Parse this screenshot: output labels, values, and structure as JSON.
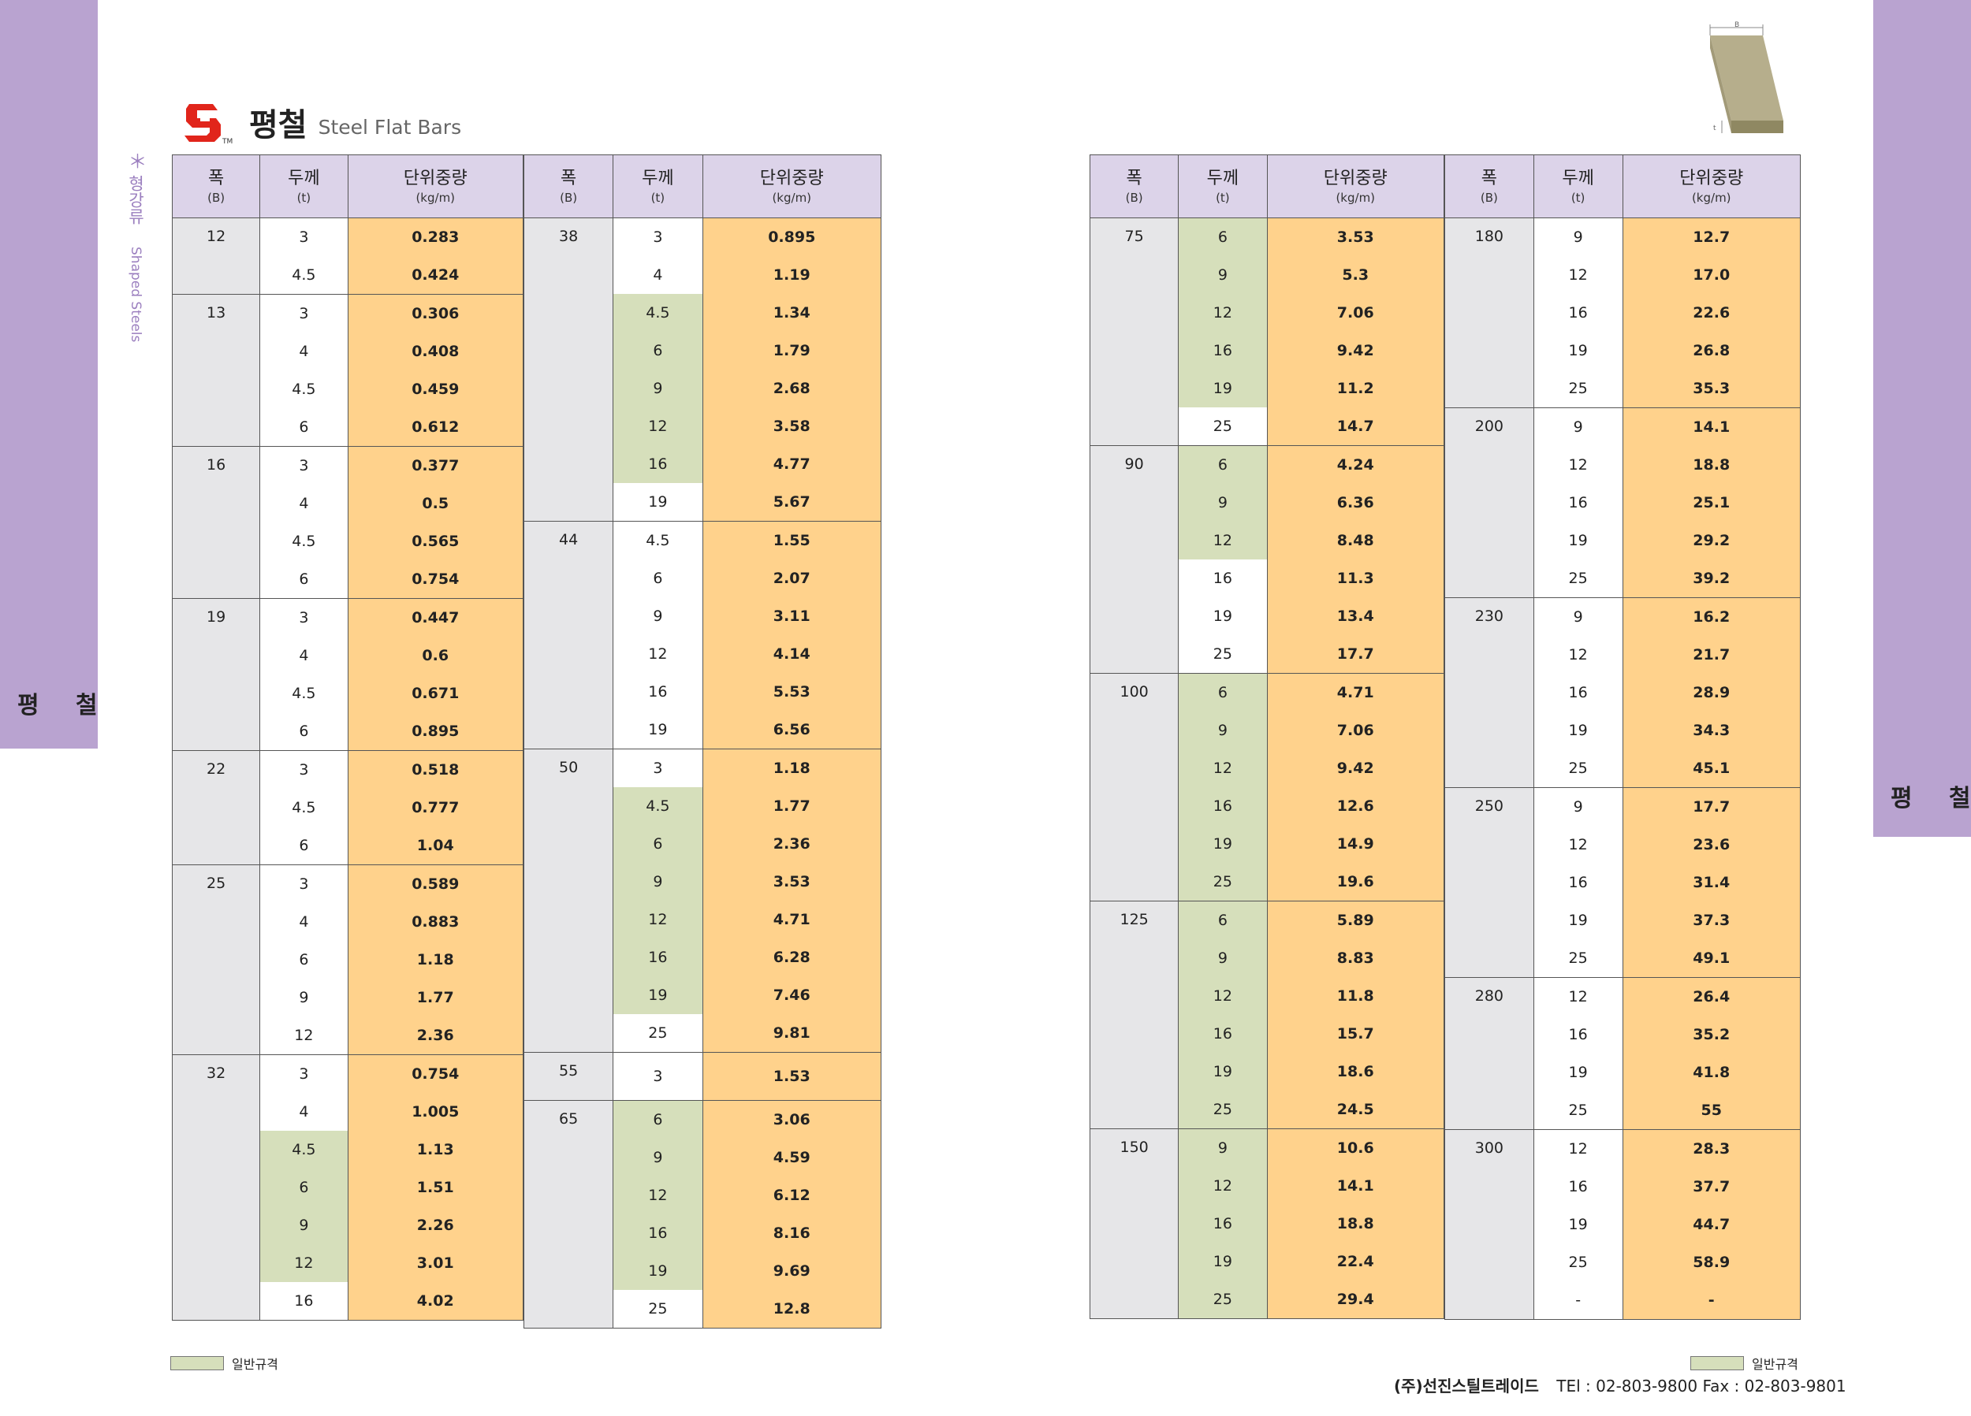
{
  "side_tab": {
    "label": "평 철"
  },
  "category": {
    "star": "＊",
    "korean": "형강류",
    "english": "Shaped Steels"
  },
  "title": {
    "korean": "평철",
    "english": "Steel Flat Bars",
    "logo_tm": "TM"
  },
  "diagram": {
    "label_b": "B",
    "label_t": "t"
  },
  "headers": {
    "width": {
      "label": "폭",
      "sub": "(B)"
    },
    "thickness": {
      "label": "두께",
      "sub": "(t)"
    },
    "weight": {
      "label": "단위중량",
      "sub": "(kg/m)"
    }
  },
  "legend": {
    "label": "일반규격"
  },
  "footer": {
    "company": "(주)선진스틸트레이드",
    "tel": "TEl : 02-803-9800",
    "fax": "Fax : 02-803-9801"
  },
  "tables": {
    "left_a": [
      {
        "b": "12",
        "rows": [
          [
            "3",
            "0.283",
            false
          ],
          [
            "4.5",
            "0.424",
            false
          ]
        ]
      },
      {
        "b": "13",
        "rows": [
          [
            "3",
            "0.306",
            false
          ],
          [
            "4",
            "0.408",
            false
          ],
          [
            "4.5",
            "0.459",
            false
          ],
          [
            "6",
            "0.612",
            false
          ]
        ]
      },
      {
        "b": "16",
        "rows": [
          [
            "3",
            "0.377",
            false
          ],
          [
            "4",
            "0.5",
            false
          ],
          [
            "4.5",
            "0.565",
            false
          ],
          [
            "6",
            "0.754",
            false
          ]
        ]
      },
      {
        "b": "19",
        "rows": [
          [
            "3",
            "0.447",
            false
          ],
          [
            "4",
            "0.6",
            false
          ],
          [
            "4.5",
            "0.671",
            false
          ],
          [
            "6",
            "0.895",
            false
          ]
        ]
      },
      {
        "b": "22",
        "rows": [
          [
            "3",
            "0.518",
            false
          ],
          [
            "4.5",
            "0.777",
            false
          ],
          [
            "6",
            "1.04",
            false
          ]
        ]
      },
      {
        "b": "25",
        "rows": [
          [
            "3",
            "0.589",
            false
          ],
          [
            "4",
            "0.883",
            false
          ],
          [
            "6",
            "1.18",
            false
          ],
          [
            "9",
            "1.77",
            false
          ],
          [
            "12",
            "2.36",
            false
          ]
        ]
      },
      {
        "b": "32",
        "rows": [
          [
            "3",
            "0.754",
            false
          ],
          [
            "4",
            "1.005",
            false
          ],
          [
            "4.5",
            "1.13",
            true
          ],
          [
            "6",
            "1.51",
            true
          ],
          [
            "9",
            "2.26",
            true
          ],
          [
            "12",
            "3.01",
            true
          ],
          [
            "16",
            "4.02",
            false
          ]
        ]
      }
    ],
    "left_b": [
      {
        "b": "38",
        "rows": [
          [
            "3",
            "0.895",
            false
          ],
          [
            "4",
            "1.19",
            false
          ],
          [
            "4.5",
            "1.34",
            true
          ],
          [
            "6",
            "1.79",
            true
          ],
          [
            "9",
            "2.68",
            true
          ],
          [
            "12",
            "3.58",
            true
          ],
          [
            "16",
            "4.77",
            true
          ],
          [
            "19",
            "5.67",
            false
          ]
        ]
      },
      {
        "b": "44",
        "rows": [
          [
            "4.5",
            "1.55",
            false
          ],
          [
            "6",
            "2.07",
            false
          ],
          [
            "9",
            "3.11",
            false
          ],
          [
            "12",
            "4.14",
            false
          ],
          [
            "16",
            "5.53",
            false
          ],
          [
            "19",
            "6.56",
            false
          ]
        ]
      },
      {
        "b": "50",
        "rows": [
          [
            "3",
            "1.18",
            false
          ],
          [
            "4.5",
            "1.77",
            true
          ],
          [
            "6",
            "2.36",
            true
          ],
          [
            "9",
            "3.53",
            true
          ],
          [
            "12",
            "4.71",
            true
          ],
          [
            "16",
            "6.28",
            true
          ],
          [
            "19",
            "7.46",
            true
          ],
          [
            "25",
            "9.81",
            false
          ]
        ]
      },
      {
        "b": "55",
        "rows": [
          [
            "3",
            "1.53",
            false
          ]
        ]
      },
      {
        "b": "65",
        "rows": [
          [
            "6",
            "3.06",
            true
          ],
          [
            "9",
            "4.59",
            true
          ],
          [
            "12",
            "6.12",
            true
          ],
          [
            "16",
            "8.16",
            true
          ],
          [
            "19",
            "9.69",
            true
          ],
          [
            "25",
            "12.8",
            false
          ]
        ]
      }
    ],
    "right_a": [
      {
        "b": "75",
        "rows": [
          [
            "6",
            "3.53",
            true
          ],
          [
            "9",
            "5.3",
            true
          ],
          [
            "12",
            "7.06",
            true
          ],
          [
            "16",
            "9.42",
            true
          ],
          [
            "19",
            "11.2",
            true
          ],
          [
            "25",
            "14.7",
            false
          ]
        ]
      },
      {
        "b": "90",
        "rows": [
          [
            "6",
            "4.24",
            true
          ],
          [
            "9",
            "6.36",
            true
          ],
          [
            "12",
            "8.48",
            true
          ],
          [
            "16",
            "11.3",
            false
          ],
          [
            "19",
            "13.4",
            false
          ],
          [
            "25",
            "17.7",
            false
          ]
        ]
      },
      {
        "b": "100",
        "rows": [
          [
            "6",
            "4.71",
            true
          ],
          [
            "9",
            "7.06",
            true
          ],
          [
            "12",
            "9.42",
            true
          ],
          [
            "16",
            "12.6",
            true
          ],
          [
            "19",
            "14.9",
            true
          ],
          [
            "25",
            "19.6",
            true
          ]
        ]
      },
      {
        "b": "125",
        "rows": [
          [
            "6",
            "5.89",
            true
          ],
          [
            "9",
            "8.83",
            true
          ],
          [
            "12",
            "11.8",
            true
          ],
          [
            "16",
            "15.7",
            true
          ],
          [
            "19",
            "18.6",
            true
          ],
          [
            "25",
            "24.5",
            true
          ]
        ]
      },
      {
        "b": "150",
        "rows": [
          [
            "9",
            "10.6",
            true
          ],
          [
            "12",
            "14.1",
            true
          ],
          [
            "16",
            "18.8",
            true
          ],
          [
            "19",
            "22.4",
            true
          ],
          [
            "25",
            "29.4",
            true
          ]
        ]
      }
    ],
    "right_b": [
      {
        "b": "180",
        "rows": [
          [
            "9",
            "12.7",
            false
          ],
          [
            "12",
            "17.0",
            false
          ],
          [
            "16",
            "22.6",
            false
          ],
          [
            "19",
            "26.8",
            false
          ],
          [
            "25",
            "35.3",
            false
          ]
        ]
      },
      {
        "b": "200",
        "rows": [
          [
            "9",
            "14.1",
            false
          ],
          [
            "12",
            "18.8",
            false
          ],
          [
            "16",
            "25.1",
            false
          ],
          [
            "19",
            "29.2",
            false
          ],
          [
            "25",
            "39.2",
            false
          ]
        ]
      },
      {
        "b": "230",
        "rows": [
          [
            "9",
            "16.2",
            false
          ],
          [
            "12",
            "21.7",
            false
          ],
          [
            "16",
            "28.9",
            false
          ],
          [
            "19",
            "34.3",
            false
          ],
          [
            "25",
            "45.1",
            false
          ]
        ]
      },
      {
        "b": "250",
        "rows": [
          [
            "9",
            "17.7",
            false
          ],
          [
            "12",
            "23.6",
            false
          ],
          [
            "16",
            "31.4",
            false
          ],
          [
            "19",
            "37.3",
            false
          ],
          [
            "25",
            "49.1",
            false
          ]
        ]
      },
      {
        "b": "280",
        "rows": [
          [
            "12",
            "26.4",
            false
          ],
          [
            "16",
            "35.2",
            false
          ],
          [
            "19",
            "41.8",
            false
          ],
          [
            "25",
            "55",
            false
          ]
        ]
      },
      {
        "b": "300",
        "rows": [
          [
            "12",
            "28.3",
            false
          ],
          [
            "16",
            "37.7",
            false
          ],
          [
            "19",
            "44.7",
            false
          ],
          [
            "25",
            "58.9",
            false
          ],
          [
            "-",
            "-",
            false
          ]
        ]
      }
    ]
  }
}
